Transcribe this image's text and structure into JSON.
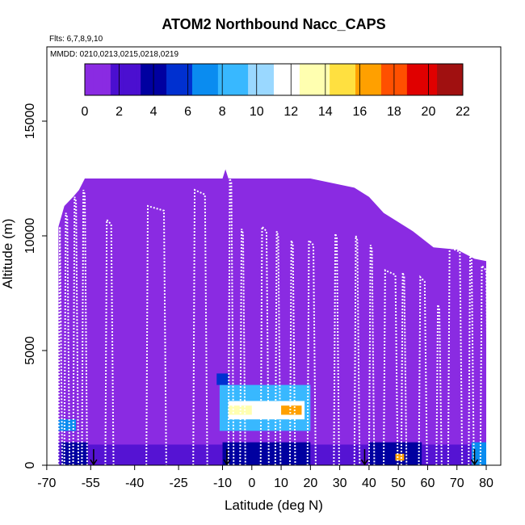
{
  "chart_data": {
    "type": "heatmap",
    "title": "ATOM2 Northbound Nacc_CAPS",
    "flights_label": "Flts: 6,7,8,9,10",
    "mmdd_label": "MMDD: 0210,0213,0215,0218,0219",
    "xlabel": "Latitude (deg N)",
    "ylabel": "Altitude (m)",
    "xlim": [
      -70,
      85
    ],
    "ylim": [
      0,
      17500
    ],
    "x_ticks": [
      -70,
      -55,
      -40,
      -25,
      -10,
      0,
      10,
      20,
      30,
      40,
      50,
      60,
      70,
      80
    ],
    "y_ticks": [
      0,
      5000,
      10000,
      15000
    ],
    "colorbar": {
      "min": 0,
      "max": 22,
      "ticks": [
        0,
        2,
        4,
        6,
        8,
        10,
        12,
        14,
        16,
        18,
        20,
        22
      ],
      "colors": [
        "#8a2be2",
        "#4b0fd0",
        "#0000a0",
        "#0030d0",
        "#0a8cf0",
        "#38b8ff",
        "#9ad8ff",
        "#ffffff",
        "#ffffb0",
        "#ffe040",
        "#ffa000",
        "#ff5000",
        "#e00000",
        "#a01010"
      ]
    },
    "background_value": 0.2,
    "hotspots": [
      {
        "lat_range": [
          -11,
          20
        ],
        "alt_range": [
          1500,
          3500
        ],
        "value": 8
      },
      {
        "lat_range": [
          -8,
          18
        ],
        "alt_range": [
          2000,
          2800
        ],
        "value": 12
      },
      {
        "lat_range": [
          10,
          17
        ],
        "alt_range": [
          2200,
          2600
        ],
        "value": 17
      },
      {
        "lat_range": [
          -8,
          0
        ],
        "alt_range": [
          2200,
          2600
        ],
        "value": 14
      },
      {
        "lat_range": [
          -65,
          -56
        ],
        "alt_range": [
          0,
          1000
        ],
        "value": 4
      },
      {
        "lat_range": [
          -66,
          -60
        ],
        "alt_range": [
          1500,
          2000
        ],
        "value": 7
      },
      {
        "lat_range": [
          -10,
          20
        ],
        "alt_range": [
          0,
          1000
        ],
        "value": 4
      },
      {
        "lat_range": [
          40,
          58
        ],
        "alt_range": [
          0,
          1000
        ],
        "value": 4
      },
      {
        "lat_range": [
          49,
          52
        ],
        "alt_range": [
          200,
          500
        ],
        "value": 16
      },
      {
        "lat_range": [
          75,
          80
        ],
        "alt_range": [
          0,
          1000
        ],
        "value": 7
      },
      {
        "lat_range": [
          -12,
          -8
        ],
        "alt_range": [
          3500,
          4000
        ],
        "value": 5
      }
    ],
    "arrows_lat": [
      -54,
      -8.5,
      38.5,
      76
    ]
  }
}
